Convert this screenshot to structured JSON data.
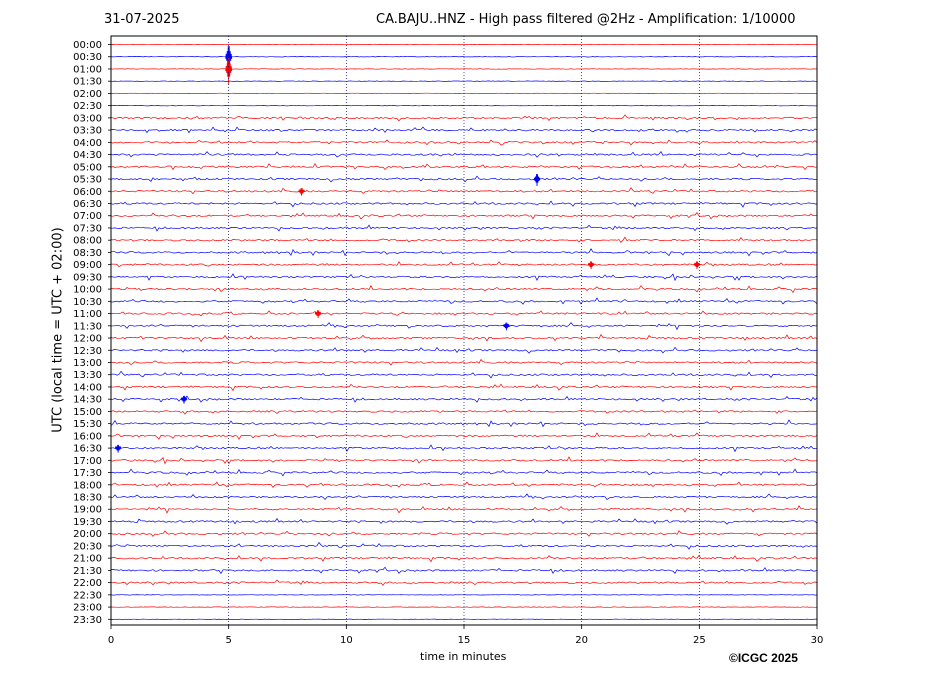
{
  "header": {
    "date": "31-07-2025",
    "title": "CA.BAJU..HNZ - High pass filtered @2Hz - Amplification: 1/10000"
  },
  "footer": {
    "copyright": "©ICGC 2025"
  },
  "colors": {
    "trace_a": "#ff0000",
    "trace_b": "#0000ff",
    "axis": "#000000"
  },
  "chart_data": {
    "type": "line",
    "xlabel": "time in minutes",
    "ylabel": "UTC (local time = UTC + 02:00)",
    "xlim": [
      0,
      30
    ],
    "xticks": [
      "0",
      "5",
      "10",
      "15",
      "20",
      "25",
      "30"
    ],
    "vertical_gridlines_at": [
      5,
      10,
      15,
      20,
      25
    ],
    "grid": "dotted vertical",
    "rows": [
      "00:00",
      "00:30",
      "01:00",
      "01:30",
      "02:00",
      "02:30",
      "03:00",
      "03:30",
      "04:00",
      "04:30",
      "05:00",
      "05:30",
      "06:00",
      "06:30",
      "07:00",
      "07:30",
      "08:00",
      "08:30",
      "09:00",
      "09:30",
      "10:00",
      "10:30",
      "11:00",
      "11:30",
      "12:00",
      "12:30",
      "13:00",
      "13:30",
      "14:00",
      "14:30",
      "15:00",
      "15:30",
      "16:00",
      "16:30",
      "17:00",
      "17:30",
      "18:00",
      "18:30",
      "19:00",
      "19:30",
      "20:00",
      "20:30",
      "21:00",
      "21:30",
      "22:00",
      "22:30",
      "23:00",
      "23:30"
    ],
    "row_colors": [
      "red",
      "blue",
      "red",
      "blue",
      "red",
      "blue",
      "red",
      "blue",
      "red",
      "blue",
      "red",
      "blue",
      "red",
      "blue",
      "red",
      "blue",
      "red",
      "blue",
      "red",
      "blue",
      "red",
      "blue",
      "red",
      "blue",
      "red",
      "blue",
      "red",
      "blue",
      "red",
      "blue",
      "red",
      "blue",
      "red",
      "blue",
      "red",
      "blue",
      "red",
      "blue",
      "red",
      "blue",
      "red",
      "blue",
      "red",
      "blue",
      "red",
      "blue",
      "red",
      "blue"
    ],
    "quiet_rows": [
      "00:00",
      "00:30",
      "01:00",
      "01:30",
      "02:00",
      "02:30",
      "22:30",
      "23:00",
      "23:30"
    ],
    "events": [
      {
        "row": "00:30",
        "minute": 5.0,
        "amplitude": "large"
      },
      {
        "row": "01:00",
        "minute": 5.0,
        "amplitude": "large"
      },
      {
        "row": "05:30",
        "minute": 18.1,
        "amplitude": "medium"
      },
      {
        "row": "06:00",
        "minute": 8.1,
        "amplitude": "small"
      },
      {
        "row": "09:00",
        "minute": 20.4,
        "amplitude": "small"
      },
      {
        "row": "09:00",
        "minute": 24.9,
        "amplitude": "small"
      },
      {
        "row": "11:00",
        "minute": 8.8,
        "amplitude": "small"
      },
      {
        "row": "11:30",
        "minute": 16.8,
        "amplitude": "small"
      },
      {
        "row": "14:30",
        "minute": 3.1,
        "amplitude": "small"
      },
      {
        "row": "16:30",
        "minute": 0.3,
        "amplitude": "small"
      }
    ]
  }
}
